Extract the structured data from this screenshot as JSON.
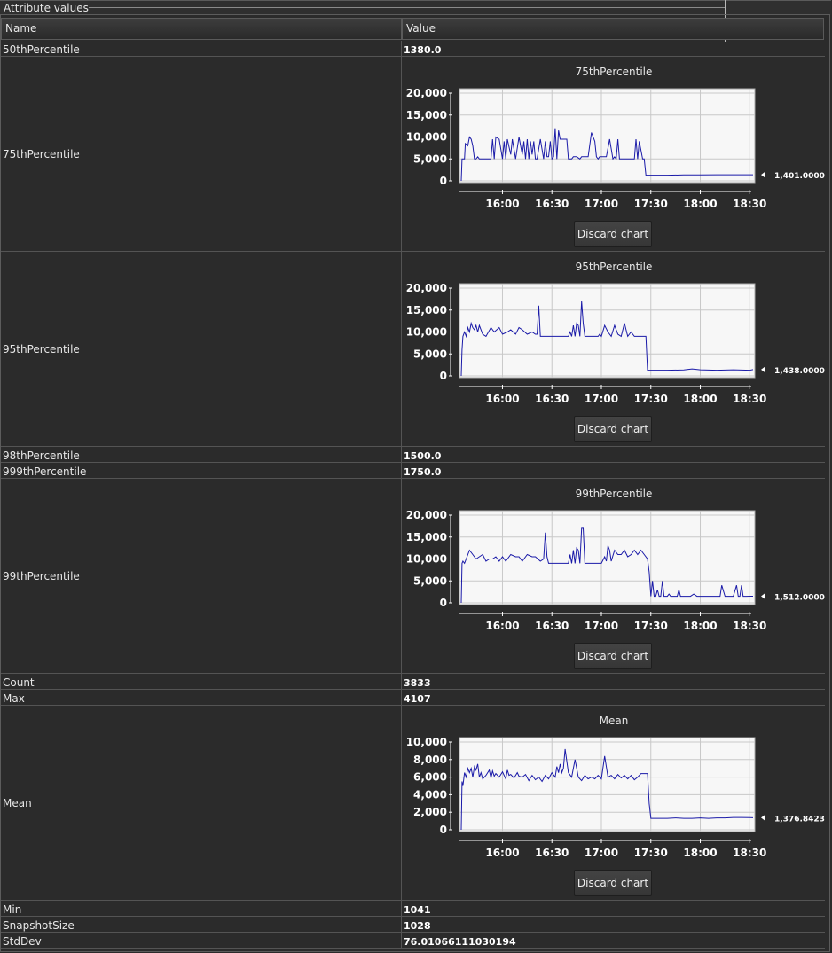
{
  "panel": {
    "title": "Attribute values"
  },
  "table": {
    "headers": {
      "name": "Name",
      "value": "Value"
    },
    "rows": [
      {
        "name": "50thPercentile",
        "value": "1380.0"
      },
      {
        "name": "75thPercentile",
        "chart": 0
      },
      {
        "name": "95thPercentile",
        "chart": 1
      },
      {
        "name": "98thPercentile",
        "value": "1500.0"
      },
      {
        "name": "999thPercentile",
        "value": "1750.0"
      },
      {
        "name": "99thPercentile",
        "chart": 2
      },
      {
        "name": "Count",
        "value": "3833"
      },
      {
        "name": "Max",
        "value": "4107"
      },
      {
        "name": "Mean",
        "chart": 3
      },
      {
        "name": "Min",
        "value": "1041"
      },
      {
        "name": "SnapshotSize",
        "value": "1028"
      },
      {
        "name": "StdDev",
        "value": "76.01066111030194"
      }
    ]
  },
  "discard_label": "Discard chart",
  "colors": {
    "line": "#1a1aa8",
    "plot_bg": "#f7f7f7",
    "grid": "#c8c8c8"
  },
  "chart_data": [
    {
      "type": "line",
      "title": "75thPercentile",
      "x_ticks": [
        "16:00",
        "16:30",
        "17:00",
        "17:30",
        "18:00",
        "18:30"
      ],
      "x_tick_minutes": [
        960,
        990,
        1020,
        1050,
        1080,
        1110
      ],
      "xlim_minutes": [
        935,
        1112
      ],
      "y_ticks": [
        "0",
        "5,000",
        "10,000",
        "15,000",
        "20,000"
      ],
      "ylim": [
        0,
        20000
      ],
      "current_value_label": "1,401.0000",
      "series": [
        {
          "x": [
            935,
            935.5,
            937,
            937.5,
            939,
            940,
            941,
            942,
            943,
            944,
            945,
            946,
            948,
            950,
            953,
            954,
            955,
            956,
            958,
            960,
            961,
            962,
            963,
            965,
            966,
            968,
            970,
            972,
            973,
            974,
            975,
            976,
            977,
            978,
            979,
            980,
            981,
            983,
            985,
            986,
            987,
            988,
            989,
            990,
            991,
            992,
            993,
            994,
            995,
            997,
            999,
            1000,
            1002,
            1003,
            1005,
            1007,
            1008,
            1010,
            1012,
            1014,
            1016,
            1017,
            1018,
            1019,
            1021,
            1023,
            1025,
            1027,
            1028,
            1029,
            1030,
            1031,
            1032,
            1033,
            1034,
            1036,
            1038,
            1040,
            1041,
            1042,
            1043,
            1045,
            1046,
            1047,
            1048,
            1049,
            1050,
            1060,
            1070,
            1080,
            1090,
            1100,
            1108,
            1110,
            1112
          ],
          "y": [
            0,
            5000,
            5000,
            8500,
            8000,
            10000,
            9500,
            8000,
            5000,
            5000,
            5500,
            5000,
            5000,
            5000,
            5000,
            9500,
            5000,
            10000,
            9500,
            5000,
            9000,
            5000,
            9500,
            6000,
            9500,
            5000,
            10000,
            6000,
            9000,
            5000,
            9500,
            5000,
            9000,
            6000,
            9000,
            5000,
            5000,
            9500,
            5000,
            9000,
            5500,
            5500,
            9000,
            5000,
            5500,
            12000,
            5000,
            11500,
            9500,
            9500,
            9500,
            5000,
            5000,
            5500,
            5500,
            5000,
            5500,
            5500,
            5500,
            11000,
            9000,
            5500,
            5000,
            5500,
            5500,
            5500,
            9500,
            5000,
            5500,
            5000,
            9500,
            5000,
            5000,
            5000,
            5000,
            5000,
            5000,
            5000,
            9500,
            5000,
            9000,
            5000,
            5000,
            1300,
            1300,
            1300,
            1300,
            1300,
            1350,
            1350,
            1400,
            1400,
            1401,
            1401,
            1401
          ]
        }
      ]
    },
    {
      "type": "line",
      "title": "95thPercentile",
      "x_ticks": [
        "16:00",
        "16:30",
        "17:00",
        "17:30",
        "18:00",
        "18:30"
      ],
      "x_tick_minutes": [
        960,
        990,
        1020,
        1050,
        1080,
        1110
      ],
      "xlim_minutes": [
        935,
        1112
      ],
      "y_ticks": [
        "0",
        "5,000",
        "10,000",
        "15,000",
        "20,000"
      ],
      "ylim": [
        0,
        20000
      ],
      "current_value_label": "1,438.0000",
      "series": [
        {
          "x": [
            935,
            935.5,
            936,
            937,
            938,
            939,
            940,
            941,
            942,
            943,
            944,
            945,
            946,
            948,
            950,
            953,
            955,
            958,
            960,
            963,
            965,
            968,
            970,
            972,
            975,
            978,
            980,
            981,
            982,
            983,
            984,
            985,
            987,
            988,
            990,
            992,
            995,
            997,
            1000,
            1001,
            1002,
            1003,
            1004,
            1005,
            1006,
            1007,
            1008,
            1009,
            1010,
            1012,
            1015,
            1017,
            1018,
            1019,
            1020,
            1022,
            1024,
            1026,
            1028,
            1030,
            1032,
            1034,
            1036,
            1038,
            1040,
            1042,
            1045,
            1047,
            1048,
            1049,
            1050,
            1060,
            1070,
            1075,
            1080,
            1090,
            1100,
            1110,
            1112
          ],
          "y": [
            0,
            6000,
            9000,
            10000,
            9000,
            11000,
            10000,
            12000,
            11000,
            10500,
            11500,
            10000,
            11500,
            9500,
            9000,
            11000,
            10000,
            11000,
            9500,
            10000,
            10500,
            9500,
            11000,
            10500,
            9500,
            10000,
            9500,
            9500,
            16000,
            9000,
            9000,
            9000,
            9000,
            9000,
            9000,
            9000,
            9000,
            9000,
            9000,
            10000,
            9000,
            11500,
            9000,
            12000,
            11500,
            9000,
            17000,
            12000,
            9000,
            9000,
            9000,
            9000,
            9000,
            9500,
            9000,
            11500,
            10000,
            9000,
            11500,
            9500,
            9000,
            12000,
            9000,
            10000,
            9000,
            9000,
            9000,
            9000,
            1300,
            1300,
            1300,
            1300,
            1350,
            1600,
            1400,
            1300,
            1400,
            1300,
            1438
          ]
        }
      ]
    },
    {
      "type": "line",
      "title": "99thPercentile",
      "x_ticks": [
        "16:00",
        "16:30",
        "17:00",
        "17:30",
        "18:00",
        "18:30"
      ],
      "x_tick_minutes": [
        960,
        990,
        1020,
        1050,
        1080,
        1110
      ],
      "xlim_minutes": [
        935,
        1112
      ],
      "y_ticks": [
        "0",
        "5,000",
        "10,000",
        "15,000",
        "20,000"
      ],
      "ylim": [
        0,
        20000
      ],
      "current_value_label": "1,512.0000",
      "series": [
        {
          "x": [
            935,
            935.5,
            936,
            937,
            940,
            942,
            944,
            946,
            948,
            950,
            952,
            954,
            956,
            958,
            960,
            962,
            965,
            968,
            970,
            972,
            975,
            978,
            980,
            983,
            985,
            986,
            987,
            988,
            990,
            992,
            995,
            998,
            1000,
            1001,
            1002,
            1003,
            1004,
            1005,
            1006,
            1007,
            1008,
            1009,
            1010,
            1012,
            1015,
            1018,
            1020,
            1022,
            1023,
            1024,
            1025,
            1026,
            1028,
            1030,
            1032,
            1034,
            1036,
            1038,
            1040,
            1042,
            1044,
            1046,
            1048,
            1049,
            1050,
            1051,
            1052,
            1053,
            1054,
            1055,
            1056,
            1057,
            1058,
            1060,
            1061,
            1062,
            1064,
            1066,
            1067,
            1068,
            1070,
            1072,
            1074,
            1076,
            1078,
            1080,
            1085,
            1090,
            1092,
            1093,
            1095,
            1097,
            1100,
            1102,
            1103,
            1104,
            1105,
            1106,
            1107,
            1108,
            1110,
            1112
          ],
          "y": [
            0,
            9000,
            9500,
            9000,
            12000,
            11000,
            10000,
            10500,
            11000,
            9500,
            10000,
            10000,
            10500,
            9500,
            10500,
            9500,
            11000,
            10500,
            10500,
            9500,
            11000,
            10500,
            10500,
            9500,
            10000,
            16000,
            10500,
            9000,
            9000,
            9000,
            9000,
            9000,
            9000,
            11000,
            9000,
            12000,
            9000,
            12500,
            12000,
            9000,
            17000,
            17000,
            9000,
            9000,
            9000,
            9000,
            9000,
            10500,
            9500,
            13000,
            12000,
            9500,
            12000,
            11000,
            11000,
            12000,
            10500,
            11000,
            12000,
            11000,
            12000,
            11000,
            10000,
            7000,
            1500,
            5000,
            1500,
            1500,
            3000,
            1500,
            1500,
            5000,
            1500,
            1500,
            2000,
            1500,
            1500,
            1500,
            3000,
            1500,
            1500,
            1500,
            1500,
            2000,
            1500,
            1500,
            1500,
            1500,
            1500,
            4000,
            1500,
            1500,
            1500,
            4000,
            1500,
            1500,
            4000,
            1500,
            1500,
            1500,
            1512,
            1512
          ]
        }
      ]
    },
    {
      "type": "line",
      "title": "Mean",
      "x_ticks": [
        "16:00",
        "16:30",
        "17:00",
        "17:30",
        "18:00",
        "18:30"
      ],
      "x_tick_minutes": [
        960,
        990,
        1020,
        1050,
        1080,
        1110
      ],
      "xlim_minutes": [
        935,
        1112
      ],
      "y_ticks": [
        "0",
        "2,000",
        "4,000",
        "6,000",
        "8,000",
        "10,000"
      ],
      "ylim": [
        0,
        10000
      ],
      "current_value_label": "1,376.8423",
      "series": [
        {
          "x": [
            935,
            935.5,
            936,
            937,
            938,
            939,
            940,
            941,
            942,
            943,
            944,
            945,
            946,
            947,
            948,
            950,
            952,
            953,
            954,
            955,
            956,
            958,
            960,
            962,
            963,
            964,
            965,
            967,
            969,
            970,
            972,
            974,
            976,
            978,
            980,
            982,
            984,
            986,
            988,
            990,
            992,
            993,
            994,
            995,
            996,
            997,
            998,
            1000,
            1002,
            1004,
            1006,
            1008,
            1010,
            1012,
            1014,
            1016,
            1018,
            1020,
            1022,
            1024,
            1026,
            1028,
            1030,
            1032,
            1034,
            1036,
            1038,
            1040,
            1042,
            1044,
            1046,
            1048,
            1049,
            1050,
            1055,
            1060,
            1065,
            1070,
            1075,
            1080,
            1085,
            1090,
            1095,
            1100,
            1105,
            1110,
            1112
          ],
          "y": [
            0,
            5500,
            5000,
            6500,
            6000,
            7000,
            6500,
            7000,
            6000,
            7200,
            6800,
            7500,
            6000,
            6500,
            5800,
            6200,
            6800,
            5900,
            6700,
            6100,
            6400,
            6000,
            6600,
            5800,
            6800,
            6200,
            6300,
            5900,
            6500,
            6100,
            6000,
            6300,
            5600,
            6200,
            5700,
            6000,
            5500,
            6200,
            5800,
            6500,
            6000,
            7200,
            6500,
            7500,
            6500,
            7000,
            9200,
            6500,
            6000,
            8000,
            6000,
            5600,
            6200,
            5800,
            6000,
            5800,
            6200,
            5800,
            8400,
            6000,
            6200,
            5800,
            6300,
            5900,
            6200,
            5800,
            6200,
            5700,
            6000,
            6400,
            6400,
            6400,
            3000,
            1300,
            1300,
            1300,
            1350,
            1300,
            1300,
            1350,
            1300,
            1350,
            1350,
            1400,
            1400,
            1380,
            1377
          ]
        }
      ]
    }
  ]
}
